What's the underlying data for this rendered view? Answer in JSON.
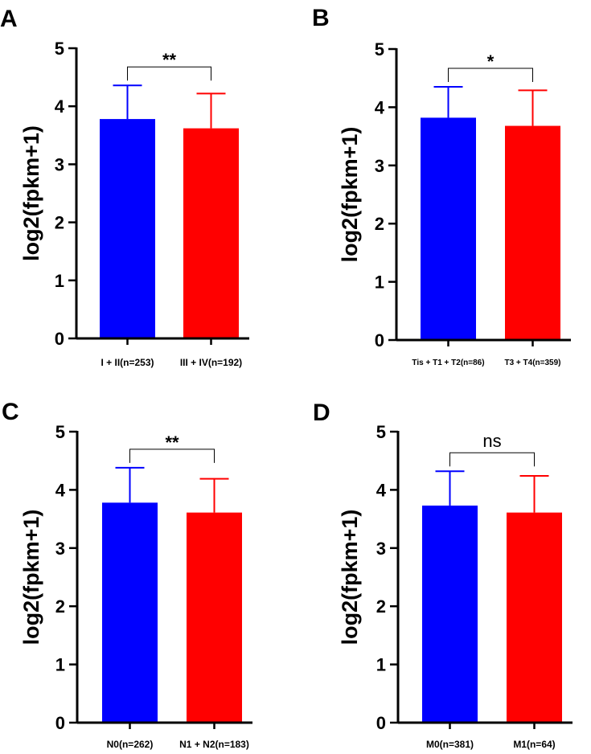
{
  "chart_data": [
    {
      "panel": "A",
      "type": "bar",
      "categories": [
        "I + II(n=253)",
        "III + IV(n=192)"
      ],
      "values": [
        3.78,
        3.62
      ],
      "error_upper": [
        0.58,
        0.6
      ],
      "colors": [
        "#0000ff",
        "#ff0000"
      ],
      "ylabel": "log2(fpkm+1)",
      "ylim": [
        0,
        5
      ],
      "yticks": [
        0,
        1,
        2,
        3,
        4,
        5
      ],
      "significance": "**"
    },
    {
      "panel": "B",
      "type": "bar",
      "categories": [
        "Tis + T1 + T2(n=86)",
        "T3 + T4(n=359)"
      ],
      "values": [
        3.82,
        3.68
      ],
      "error_upper": [
        0.53,
        0.61
      ],
      "colors": [
        "#0000ff",
        "#ff0000"
      ],
      "ylabel": "log2(fpkm+1)",
      "ylim": [
        0,
        5
      ],
      "yticks": [
        0,
        1,
        2,
        3,
        4,
        5
      ],
      "significance": "*"
    },
    {
      "panel": "C",
      "type": "bar",
      "categories": [
        "N0(n=262)",
        "N1 + N2(n=183)"
      ],
      "values": [
        3.78,
        3.61
      ],
      "error_upper": [
        0.6,
        0.58
      ],
      "colors": [
        "#0000ff",
        "#ff0000"
      ],
      "ylabel": "log2(fpkm+1)",
      "ylim": [
        0,
        5
      ],
      "yticks": [
        0,
        1,
        2,
        3,
        4,
        5
      ],
      "significance": "**"
    },
    {
      "panel": "D",
      "type": "bar",
      "categories": [
        "M0(n=381)",
        "M1(n=64)"
      ],
      "values": [
        3.73,
        3.61
      ],
      "error_upper": [
        0.59,
        0.63
      ],
      "colors": [
        "#0000ff",
        "#ff0000"
      ],
      "ylabel": "log2(fpkm+1)",
      "ylim": [
        0,
        5
      ],
      "yticks": [
        0,
        1,
        2,
        3,
        4,
        5
      ],
      "significance": "ns"
    }
  ]
}
